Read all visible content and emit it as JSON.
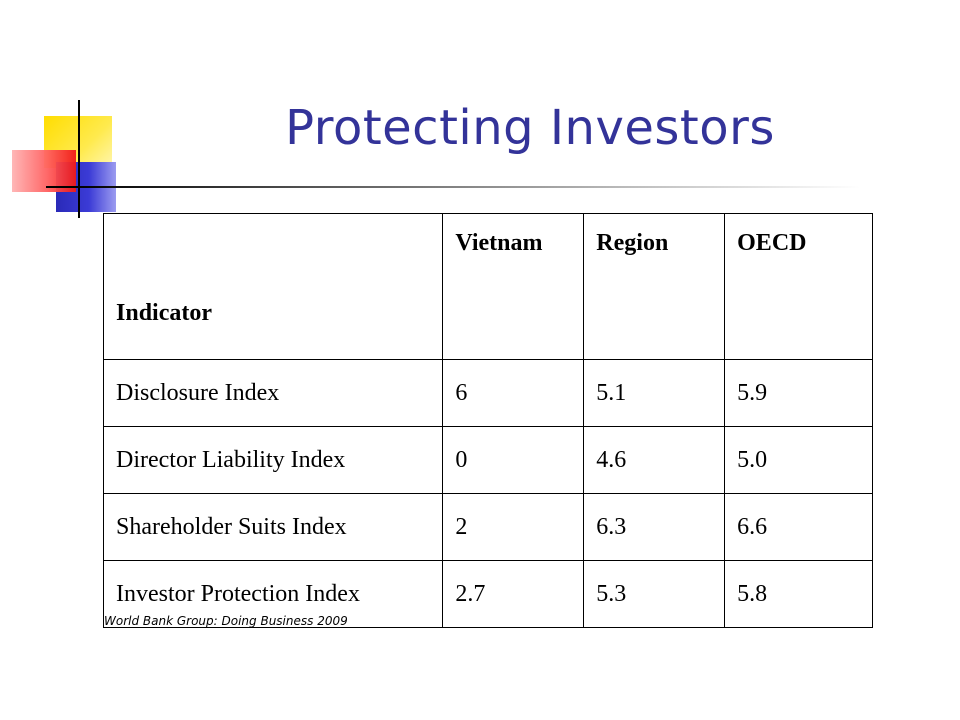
{
  "title": "Protecting Investors",
  "table": {
    "headers": [
      "Indicator",
      "Vietnam",
      "Region",
      "OECD"
    ],
    "rows": [
      [
        "Disclosure Index",
        "6",
        "5.1",
        "5.9"
      ],
      [
        "Director Liability Index",
        "0",
        "4.6",
        "5.0"
      ],
      [
        "Shareholder Suits Index",
        "2",
        "6.3",
        "6.6"
      ],
      [
        "Investor Protection Index",
        "2.7",
        "5.3",
        "5.8"
      ]
    ]
  },
  "source": "World Bank Group: Doing Business 2009",
  "colors": {
    "title": "#333399",
    "logo_yellow": "#ffdd00",
    "logo_blue": "#2a2ab8",
    "logo_red": "#f01818"
  }
}
